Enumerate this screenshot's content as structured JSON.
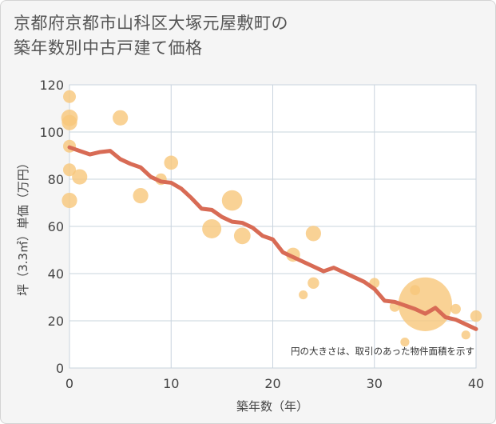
{
  "title_lines": [
    "京都府京都市山科区大塚元屋敷町の",
    "築年数別中古戸建て価格"
  ],
  "chart_data": {
    "type": "scatter",
    "xlabel": "築年数（年）",
    "ylabel": "坪（3.3㎡）単価（万円）",
    "xlim": [
      0,
      40
    ],
    "ylim": [
      0,
      120
    ],
    "x_ticks": [
      0,
      10,
      20,
      30,
      40
    ],
    "y_ticks": [
      0,
      20,
      40,
      60,
      80,
      100,
      120
    ],
    "grid": true,
    "note": "円の大きさは、取引のあった物件面積を示す",
    "colors": {
      "bubble": "#f8c77b",
      "trend": "#d86b55",
      "grid": "#c9d4de"
    },
    "points": [
      {
        "x": 0,
        "y": 115,
        "size": 1.0
      },
      {
        "x": 0,
        "y": 106,
        "size": 1.3
      },
      {
        "x": 0,
        "y": 104,
        "size": 1.2
      },
      {
        "x": 0,
        "y": 94,
        "size": 1.0
      },
      {
        "x": 0,
        "y": 84,
        "size": 1.0
      },
      {
        "x": 0,
        "y": 71,
        "size": 1.2
      },
      {
        "x": 1,
        "y": 81,
        "size": 1.2
      },
      {
        "x": 5,
        "y": 106,
        "size": 1.2
      },
      {
        "x": 7,
        "y": 73,
        "size": 1.2
      },
      {
        "x": 9,
        "y": 80,
        "size": 0.9
      },
      {
        "x": 10,
        "y": 87,
        "size": 1.1
      },
      {
        "x": 14,
        "y": 59,
        "size": 1.5
      },
      {
        "x": 16,
        "y": 71,
        "size": 1.6
      },
      {
        "x": 17,
        "y": 56,
        "size": 1.3
      },
      {
        "x": 22,
        "y": 48,
        "size": 1.1
      },
      {
        "x": 23,
        "y": 31,
        "size": 0.7
      },
      {
        "x": 24,
        "y": 57,
        "size": 1.2
      },
      {
        "x": 24,
        "y": 36,
        "size": 0.9
      },
      {
        "x": 30,
        "y": 36,
        "size": 0.8
      },
      {
        "x": 32,
        "y": 26,
        "size": 0.8
      },
      {
        "x": 33,
        "y": 11,
        "size": 0.7
      },
      {
        "x": 34,
        "y": 33,
        "size": 0.8
      },
      {
        "x": 35,
        "y": 27,
        "size": 4.2
      },
      {
        "x": 38,
        "y": 25,
        "size": 0.8
      },
      {
        "x": 39,
        "y": 14,
        "size": 0.7
      },
      {
        "x": 40,
        "y": 22,
        "size": 0.9
      }
    ],
    "trend": {
      "x": [
        0,
        1,
        2,
        3,
        4,
        5,
        6,
        7,
        8,
        9,
        10,
        11,
        12,
        13,
        14,
        15,
        16,
        17,
        18,
        19,
        20,
        21,
        22,
        23,
        24,
        25,
        26,
        27,
        28,
        29,
        30,
        31,
        32,
        33,
        34,
        35,
        36,
        37,
        38,
        39,
        40
      ],
      "y": [
        93.5,
        92,
        90.5,
        91.5,
        92,
        88.5,
        86.5,
        85,
        81,
        79,
        78.5,
        76,
        72,
        67.5,
        67,
        64,
        62,
        61.5,
        59.5,
        56,
        54.5,
        49,
        47,
        45,
        43,
        41,
        42.5,
        40.5,
        38.5,
        36.5,
        33.5,
        28.5,
        28,
        26.5,
        25,
        23,
        25.5,
        21.5,
        20.5,
        18.5,
        16.5
      ]
    }
  }
}
